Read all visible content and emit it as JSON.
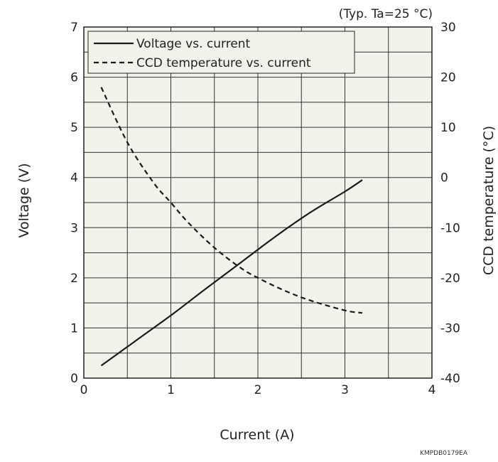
{
  "chart_data": {
    "type": "line",
    "condition_note": "(Typ. Ta=25 °C)",
    "figure_code": "KMPDB0179EA",
    "xlabel": "Current (A)",
    "ylabel_left": "Voltage (V)",
    "ylabel_right": "CCD temperature (°C)",
    "xlim": [
      0,
      4
    ],
    "ylim_left": [
      0,
      7
    ],
    "ylim_right": [
      -40,
      30
    ],
    "x_ticks": [
      0,
      1,
      2,
      3,
      4
    ],
    "x_tick_labels": [
      "0",
      "1",
      "2",
      "3",
      "4"
    ],
    "y_left_ticks": [
      0,
      1,
      2,
      3,
      4,
      5,
      6,
      7
    ],
    "y_left_tick_labels": [
      "0",
      "1",
      "2",
      "3",
      "4",
      "5",
      "6",
      "7"
    ],
    "y_right_ticks": [
      -40,
      -30,
      -20,
      -10,
      0,
      10,
      20,
      30
    ],
    "y_right_tick_labels": [
      "-40",
      "-30",
      "-20",
      "-10",
      "0",
      "10",
      "20",
      "30"
    ],
    "grid": true,
    "background_color": "#f2f1ea",
    "line_color": "#1a1a1a",
    "legend_position": "top-left",
    "series": [
      {
        "name": "Voltage vs. current",
        "axis": "left",
        "style": "solid",
        "x": [
          0.2,
          0.6,
          1.0,
          1.4,
          1.8,
          2.2,
          2.6,
          3.0,
          3.2
        ],
        "y": [
          0.25,
          0.75,
          1.25,
          1.78,
          2.3,
          2.82,
          3.3,
          3.72,
          3.95
        ]
      },
      {
        "name": "CCD temperature vs. current",
        "axis": "right",
        "style": "dashed",
        "x": [
          0.2,
          0.5,
          0.8,
          1.0,
          1.2,
          1.5,
          1.8,
          2.0,
          2.3,
          2.6,
          3.0,
          3.2
        ],
        "y": [
          18,
          7,
          -1,
          -5,
          -9,
          -14,
          -18,
          -20,
          -22.5,
          -24.5,
          -26.5,
          -27
        ]
      }
    ]
  }
}
